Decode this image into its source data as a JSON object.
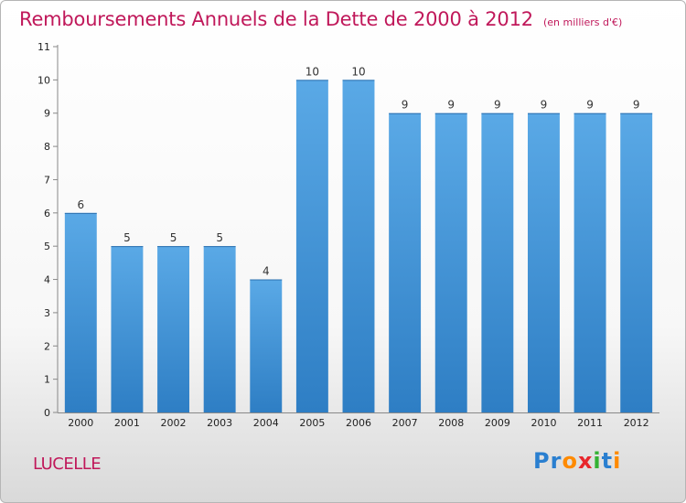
{
  "title": "Remboursements Annuels de la Dette de 2000 à 2012",
  "unit": "(en milliers d'€)",
  "commune": "LUCELLE",
  "logo": {
    "text": "Proxiti",
    "letter_colors": [
      "#2a7fd0",
      "#2a7fd0",
      "#ff8a00",
      "#e8262c",
      "#34b233",
      "#2a7fd0",
      "#ff8a00"
    ]
  },
  "colors": {
    "bar_light": "#5aa9e6",
    "bar_dark": "#2e7ec4",
    "title": "#c0185a"
  },
  "chart_data": {
    "type": "bar",
    "title": "Remboursements Annuels de la Dette de 2000 à 2012",
    "categories": [
      "2000",
      "2001",
      "2002",
      "2003",
      "2004",
      "2005",
      "2006",
      "2007",
      "2008",
      "2009",
      "2010",
      "2011",
      "2012"
    ],
    "values": [
      6,
      5,
      5,
      5,
      4,
      10,
      10,
      9,
      9,
      9,
      9,
      9,
      9
    ],
    "y_ticks": [
      0,
      1,
      2,
      3,
      4,
      5,
      6,
      7,
      8,
      9,
      10,
      11
    ],
    "ylim": [
      0,
      11
    ],
    "grid": false,
    "data_labels": true
  }
}
